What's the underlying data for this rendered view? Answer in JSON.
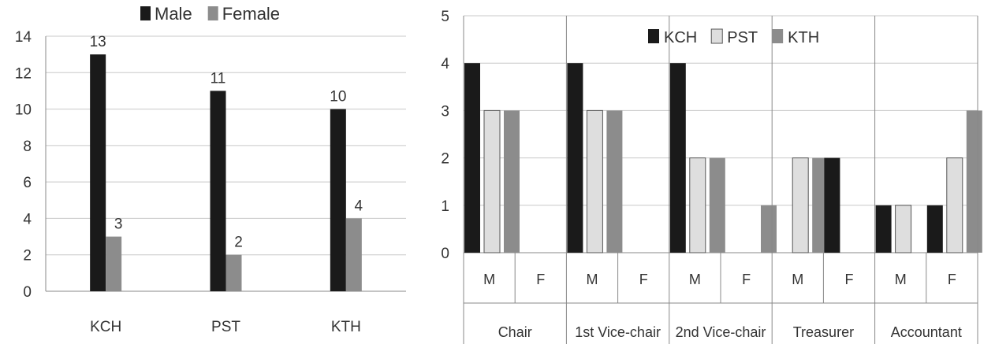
{
  "chart_data": [
    {
      "type": "bar",
      "categories": [
        "KCH",
        "PST",
        "KTH"
      ],
      "series": [
        {
          "name": "Male",
          "values": [
            13,
            11,
            10
          ]
        },
        {
          "name": "Female",
          "values": [
            3,
            2,
            4
          ]
        }
      ],
      "ylim": [
        0,
        14
      ],
      "yticks": [
        0,
        2,
        4,
        6,
        8,
        10,
        12,
        14
      ],
      "legend": "top",
      "grid": true,
      "data_labels": true,
      "colors": {
        "Male": "#1a1a1a",
        "Female": "#8c8c8c"
      }
    },
    {
      "type": "bar",
      "groups": [
        {
          "name": "Chair",
          "sub": [
            "M",
            "F"
          ]
        },
        {
          "name": "1st Vice-chair",
          "sub": [
            "M",
            "F"
          ]
        },
        {
          "name": "2nd Vice-chair",
          "sub": [
            "M",
            "F"
          ]
        },
        {
          "name": "Treasurer",
          "sub": [
            "M",
            "F"
          ]
        },
        {
          "name": "Accountant",
          "sub": [
            "M",
            "F"
          ]
        }
      ],
      "series": [
        {
          "name": "KCH",
          "values": [
            4,
            0,
            4,
            0,
            4,
            0,
            0,
            2,
            1,
            1
          ]
        },
        {
          "name": "PST",
          "values": [
            3,
            0,
            3,
            0,
            2,
            0,
            2,
            0,
            1,
            2
          ]
        },
        {
          "name": "KTH",
          "values": [
            3,
            0,
            3,
            0,
            2,
            1,
            2,
            0,
            0,
            3
          ]
        }
      ],
      "ylim": [
        0,
        5
      ],
      "yticks": [
        0,
        1,
        2,
        3,
        4,
        5
      ],
      "legend": "top",
      "grid": true,
      "colors": {
        "KCH": "#1a1a1a",
        "PST": "#dedede",
        "KTH": "#8c8c8c"
      }
    }
  ]
}
